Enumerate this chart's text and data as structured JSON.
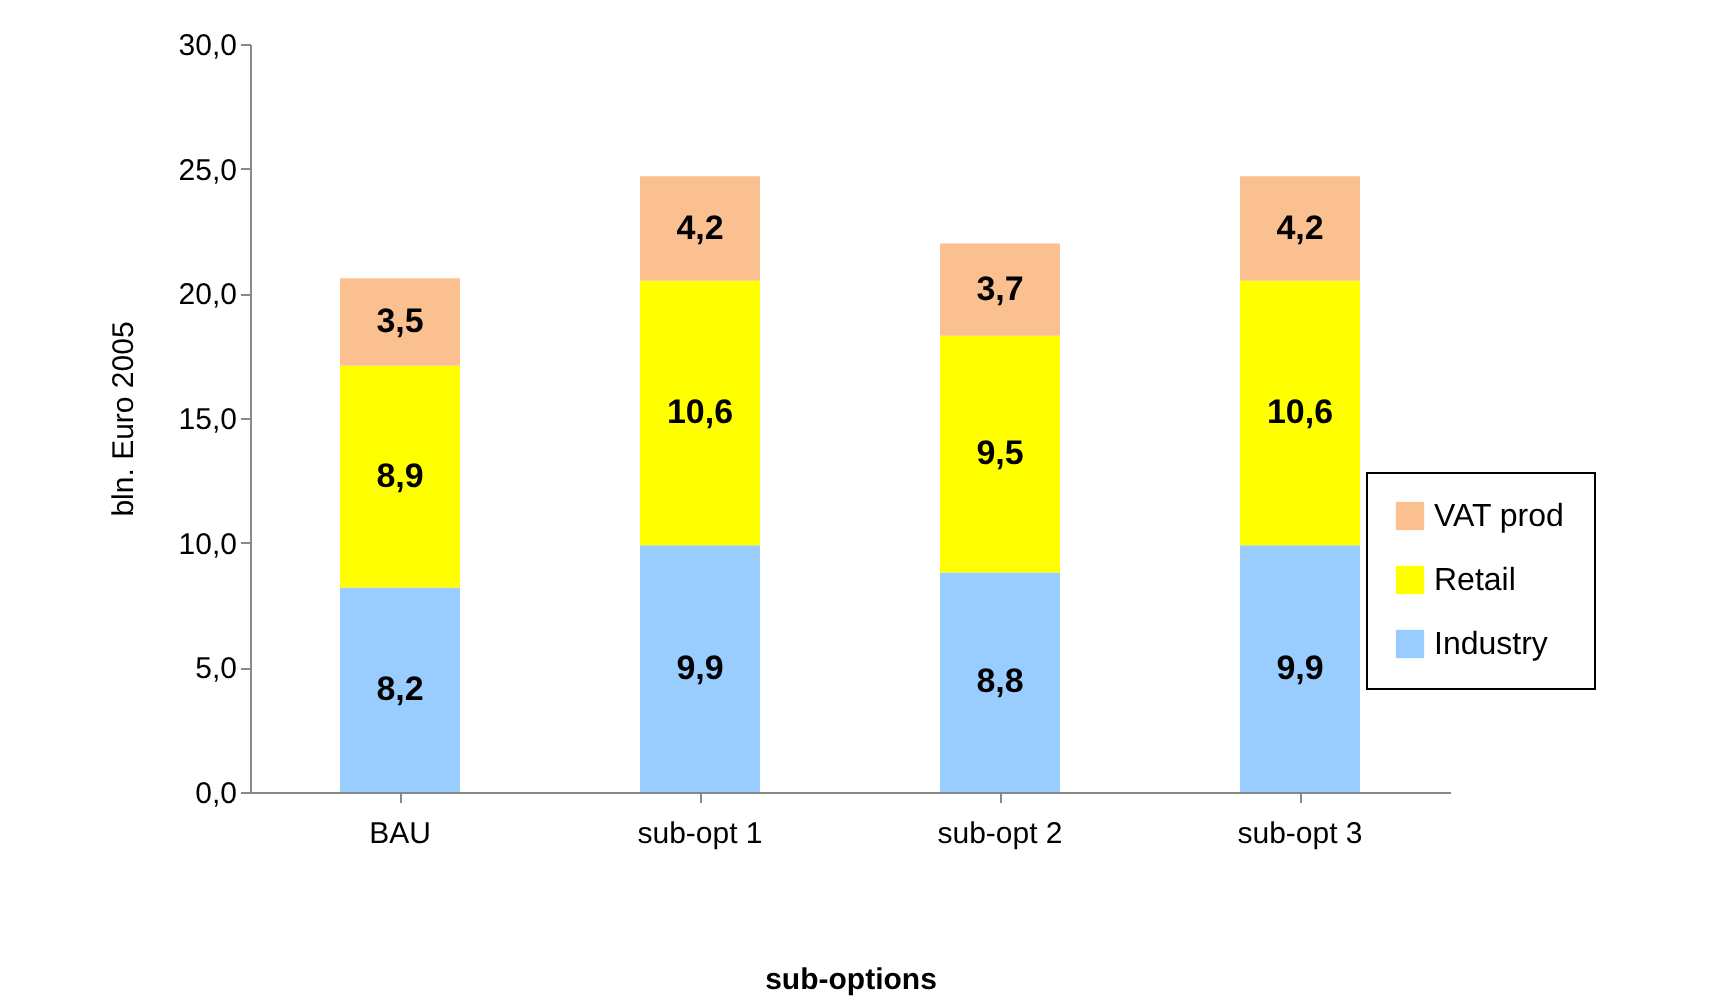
{
  "chart_data": {
    "type": "bar",
    "stacked": true,
    "xlabel": "sub-options",
    "ylabel": "bln. Euro  2005",
    "categories": [
      "BAU",
      "sub-opt 1",
      "sub-opt 2",
      "sub-opt 3"
    ],
    "series": [
      {
        "name": "Industry",
        "color": "#99ccff",
        "values": [
          8.2,
          9.9,
          8.8,
          9.9
        ],
        "value_labels": [
          "8,2",
          "9,9",
          "8,8",
          "9,9"
        ]
      },
      {
        "name": "Retail",
        "color": "#ffff00",
        "values": [
          8.9,
          10.6,
          9.5,
          10.6
        ],
        "value_labels": [
          "8,9",
          "10,6",
          "9,5",
          "10,6"
        ]
      },
      {
        "name": "VAT prod",
        "color": "#fac090",
        "values": [
          3.5,
          4.2,
          3.7,
          4.2
        ],
        "value_labels": [
          "3,5",
          "4,2",
          "3,7",
          "4,2"
        ]
      }
    ],
    "ylim": [
      0,
      30
    ],
    "yticks": [
      {
        "value": 0,
        "label": "0,0"
      },
      {
        "value": 5,
        "label": "5,0"
      },
      {
        "value": 10,
        "label": "10,0"
      },
      {
        "value": 15,
        "label": "15,0"
      },
      {
        "value": 20,
        "label": "20,0"
      },
      {
        "value": 25,
        "label": "25,0"
      },
      {
        "value": 30,
        "label": "30,0"
      }
    ],
    "grid": false,
    "legend": "right"
  }
}
